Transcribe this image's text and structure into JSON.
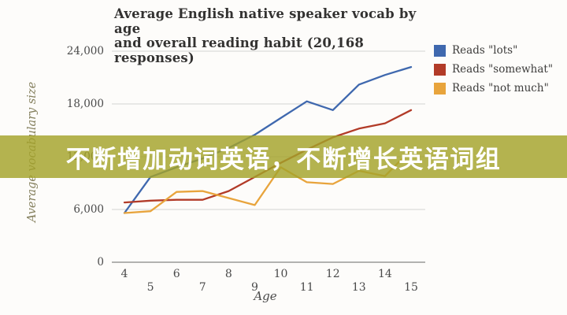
{
  "overlay": {
    "text": "不断增加动词英语，不断增长英语词组",
    "background_color": "#a3a22a",
    "text_color": "#ffffff"
  },
  "chart_data": {
    "type": "line",
    "title_line1": "Average English native speaker vocab by age",
    "title_line2": "and overall reading habit (20,168 responses)",
    "xlabel": "Age",
    "ylabel": "Average vocabulary size",
    "x": [
      4,
      5,
      6,
      7,
      8,
      9,
      10,
      11,
      12,
      13,
      14,
      15
    ],
    "x_tick_labels": [
      "4",
      "5",
      "6",
      "7",
      "8",
      "9",
      "10",
      "11",
      "12",
      "13",
      "14",
      "15"
    ],
    "y_ticks": [
      {
        "value": 0,
        "label": "0"
      },
      {
        "value": 6000,
        "label": "6,000"
      },
      {
        "value": 12000,
        "label": "12,000"
      },
      {
        "value": 18000,
        "label": "18,000"
      },
      {
        "value": 24000,
        "label": "24,000"
      }
    ],
    "ylim": [
      0,
      24000
    ],
    "grid": true,
    "legend_position": "top-right",
    "axis_color": "#9a9a98",
    "grid_color": "#dcdcda",
    "series": [
      {
        "name": "Reads \"lots\"",
        "color": "#3f68ae",
        "values": [
          5600,
          9700,
          10800,
          11800,
          13000,
          14500,
          16400,
          18300,
          17300,
          20200,
          21300,
          22200
        ]
      },
      {
        "name": "Reads \"somewhat\"",
        "color": "#b23b28",
        "values": [
          6800,
          7000,
          7100,
          7100,
          8100,
          9700,
          11300,
          12800,
          14200,
          15200,
          15800,
          17300
        ]
      },
      {
        "name": "Reads \"not much\"",
        "color": "#e8a43c",
        "values": [
          5600,
          5800,
          8000,
          8100,
          7300,
          6500,
          10800,
          9100,
          8900,
          10400,
          9800,
          12800
        ]
      }
    ]
  }
}
